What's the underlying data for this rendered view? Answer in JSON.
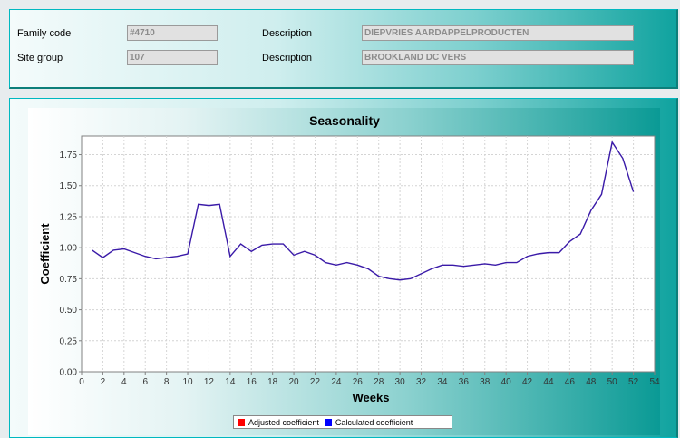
{
  "header": {
    "family_code_label": "Family code",
    "family_code_value": "#4710",
    "family_desc_label": "Description",
    "family_desc_value": "DIEPVRIES AARDAPPELPRODUCTEN",
    "site_group_label": "Site group",
    "site_group_value": "107",
    "site_desc_label": "Description",
    "site_desc_value": "BROOKLAND DC VERS"
  },
  "chart_data": {
    "type": "line",
    "title": "Seasonality",
    "xlabel": "Weeks",
    "ylabel": "Coefficient",
    "xlim": [
      0,
      54
    ],
    "ylim": [
      0,
      1.9
    ],
    "xticks": [
      0,
      2,
      4,
      6,
      8,
      10,
      12,
      14,
      16,
      18,
      20,
      22,
      24,
      26,
      28,
      30,
      32,
      34,
      36,
      38,
      40,
      42,
      44,
      46,
      48,
      50,
      52,
      54
    ],
    "yticks": [
      0.0,
      0.25,
      0.5,
      0.75,
      1.0,
      1.25,
      1.5,
      1.75
    ],
    "grid": true,
    "legend_position": "bottom",
    "series": [
      {
        "name": "Adjusted coefficient",
        "color": "#ff0000",
        "x": [],
        "values": []
      },
      {
        "name": "Calculated coefficient",
        "color": "#0000ff",
        "line_color": "#3a1aa8",
        "x": [
          1,
          2,
          3,
          4,
          5,
          6,
          7,
          8,
          9,
          10,
          11,
          12,
          13,
          14,
          15,
          16,
          17,
          18,
          19,
          20,
          21,
          22,
          23,
          24,
          25,
          26,
          27,
          28,
          29,
          30,
          31,
          32,
          33,
          34,
          35,
          36,
          37,
          38,
          39,
          40,
          41,
          42,
          43,
          44,
          45,
          46,
          47,
          48,
          49,
          50,
          51,
          52
        ],
        "values": [
          0.98,
          0.92,
          0.98,
          0.99,
          0.96,
          0.93,
          0.91,
          0.92,
          0.93,
          0.95,
          1.35,
          1.34,
          1.35,
          0.93,
          1.03,
          0.97,
          1.02,
          1.03,
          1.03,
          0.94,
          0.97,
          0.94,
          0.88,
          0.86,
          0.88,
          0.86,
          0.83,
          0.77,
          0.75,
          0.74,
          0.75,
          0.79,
          0.83,
          0.86,
          0.86,
          0.85,
          0.86,
          0.87,
          0.86,
          0.88,
          0.88,
          0.93,
          0.95,
          0.96,
          0.96,
          1.05,
          1.11,
          1.3,
          1.43,
          1.85,
          1.72,
          1.45
        ]
      }
    ]
  }
}
